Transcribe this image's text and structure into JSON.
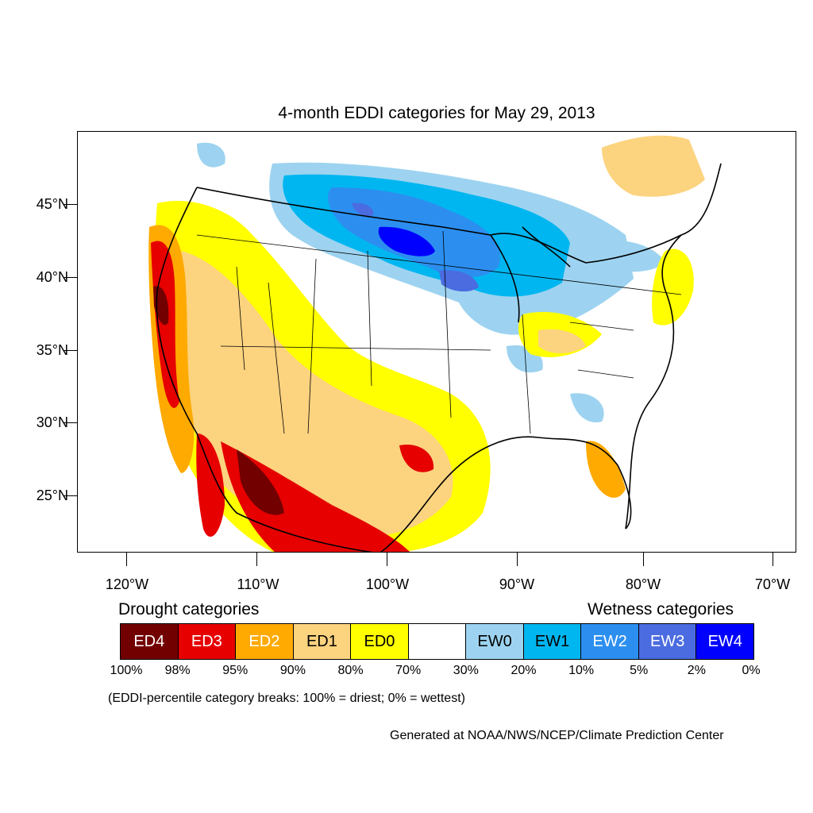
{
  "title": "4-month EDDI categories for May 29, 2013",
  "lat_labels": [
    "45°N",
    "40°N",
    "35°N",
    "30°N",
    "25°N"
  ],
  "lon_labels": [
    "120°W",
    "110°W",
    "100°W",
    "90°W",
    "80°W",
    "70°W"
  ],
  "drought_heading": "Drought categories",
  "wetness_heading": "Wetness categories",
  "legend": [
    {
      "label": "ED4",
      "color": "#730000",
      "text_color": "#ffffff"
    },
    {
      "label": "ED3",
      "color": "#e60000",
      "text_color": "#ffffff"
    },
    {
      "label": "ED2",
      "color": "#ffaa00",
      "text_color": "#ffffff"
    },
    {
      "label": "ED1",
      "color": "#fcd37f",
      "text_color": "#000000"
    },
    {
      "label": "ED0",
      "color": "#ffff00",
      "text_color": "#000000"
    },
    {
      "label": "",
      "color": "#ffffff",
      "text_color": "#000000"
    },
    {
      "label": "EW0",
      "color": "#9dd3f0",
      "text_color": "#000000"
    },
    {
      "label": "EW1",
      "color": "#00b6f0",
      "text_color": "#000000"
    },
    {
      "label": "EW2",
      "color": "#2c8ff0",
      "text_color": "#ffffff"
    },
    {
      "label": "EW3",
      "color": "#4b6be0",
      "text_color": "#ffffff"
    },
    {
      "label": "EW4",
      "color": "#0000ff",
      "text_color": "#ffffff"
    }
  ],
  "percent_breaks": [
    "100%",
    "98%",
    "95%",
    "90%",
    "80%",
    "70%",
    "30%",
    "20%",
    "10%",
    "5%",
    "2%",
    "0%"
  ],
  "note": "(EDDI-percentile category breaks: 100% = driest; 0% = wettest)",
  "credit": "Generated at NOAA/NWS/NCEP/Climate Prediction Center"
}
